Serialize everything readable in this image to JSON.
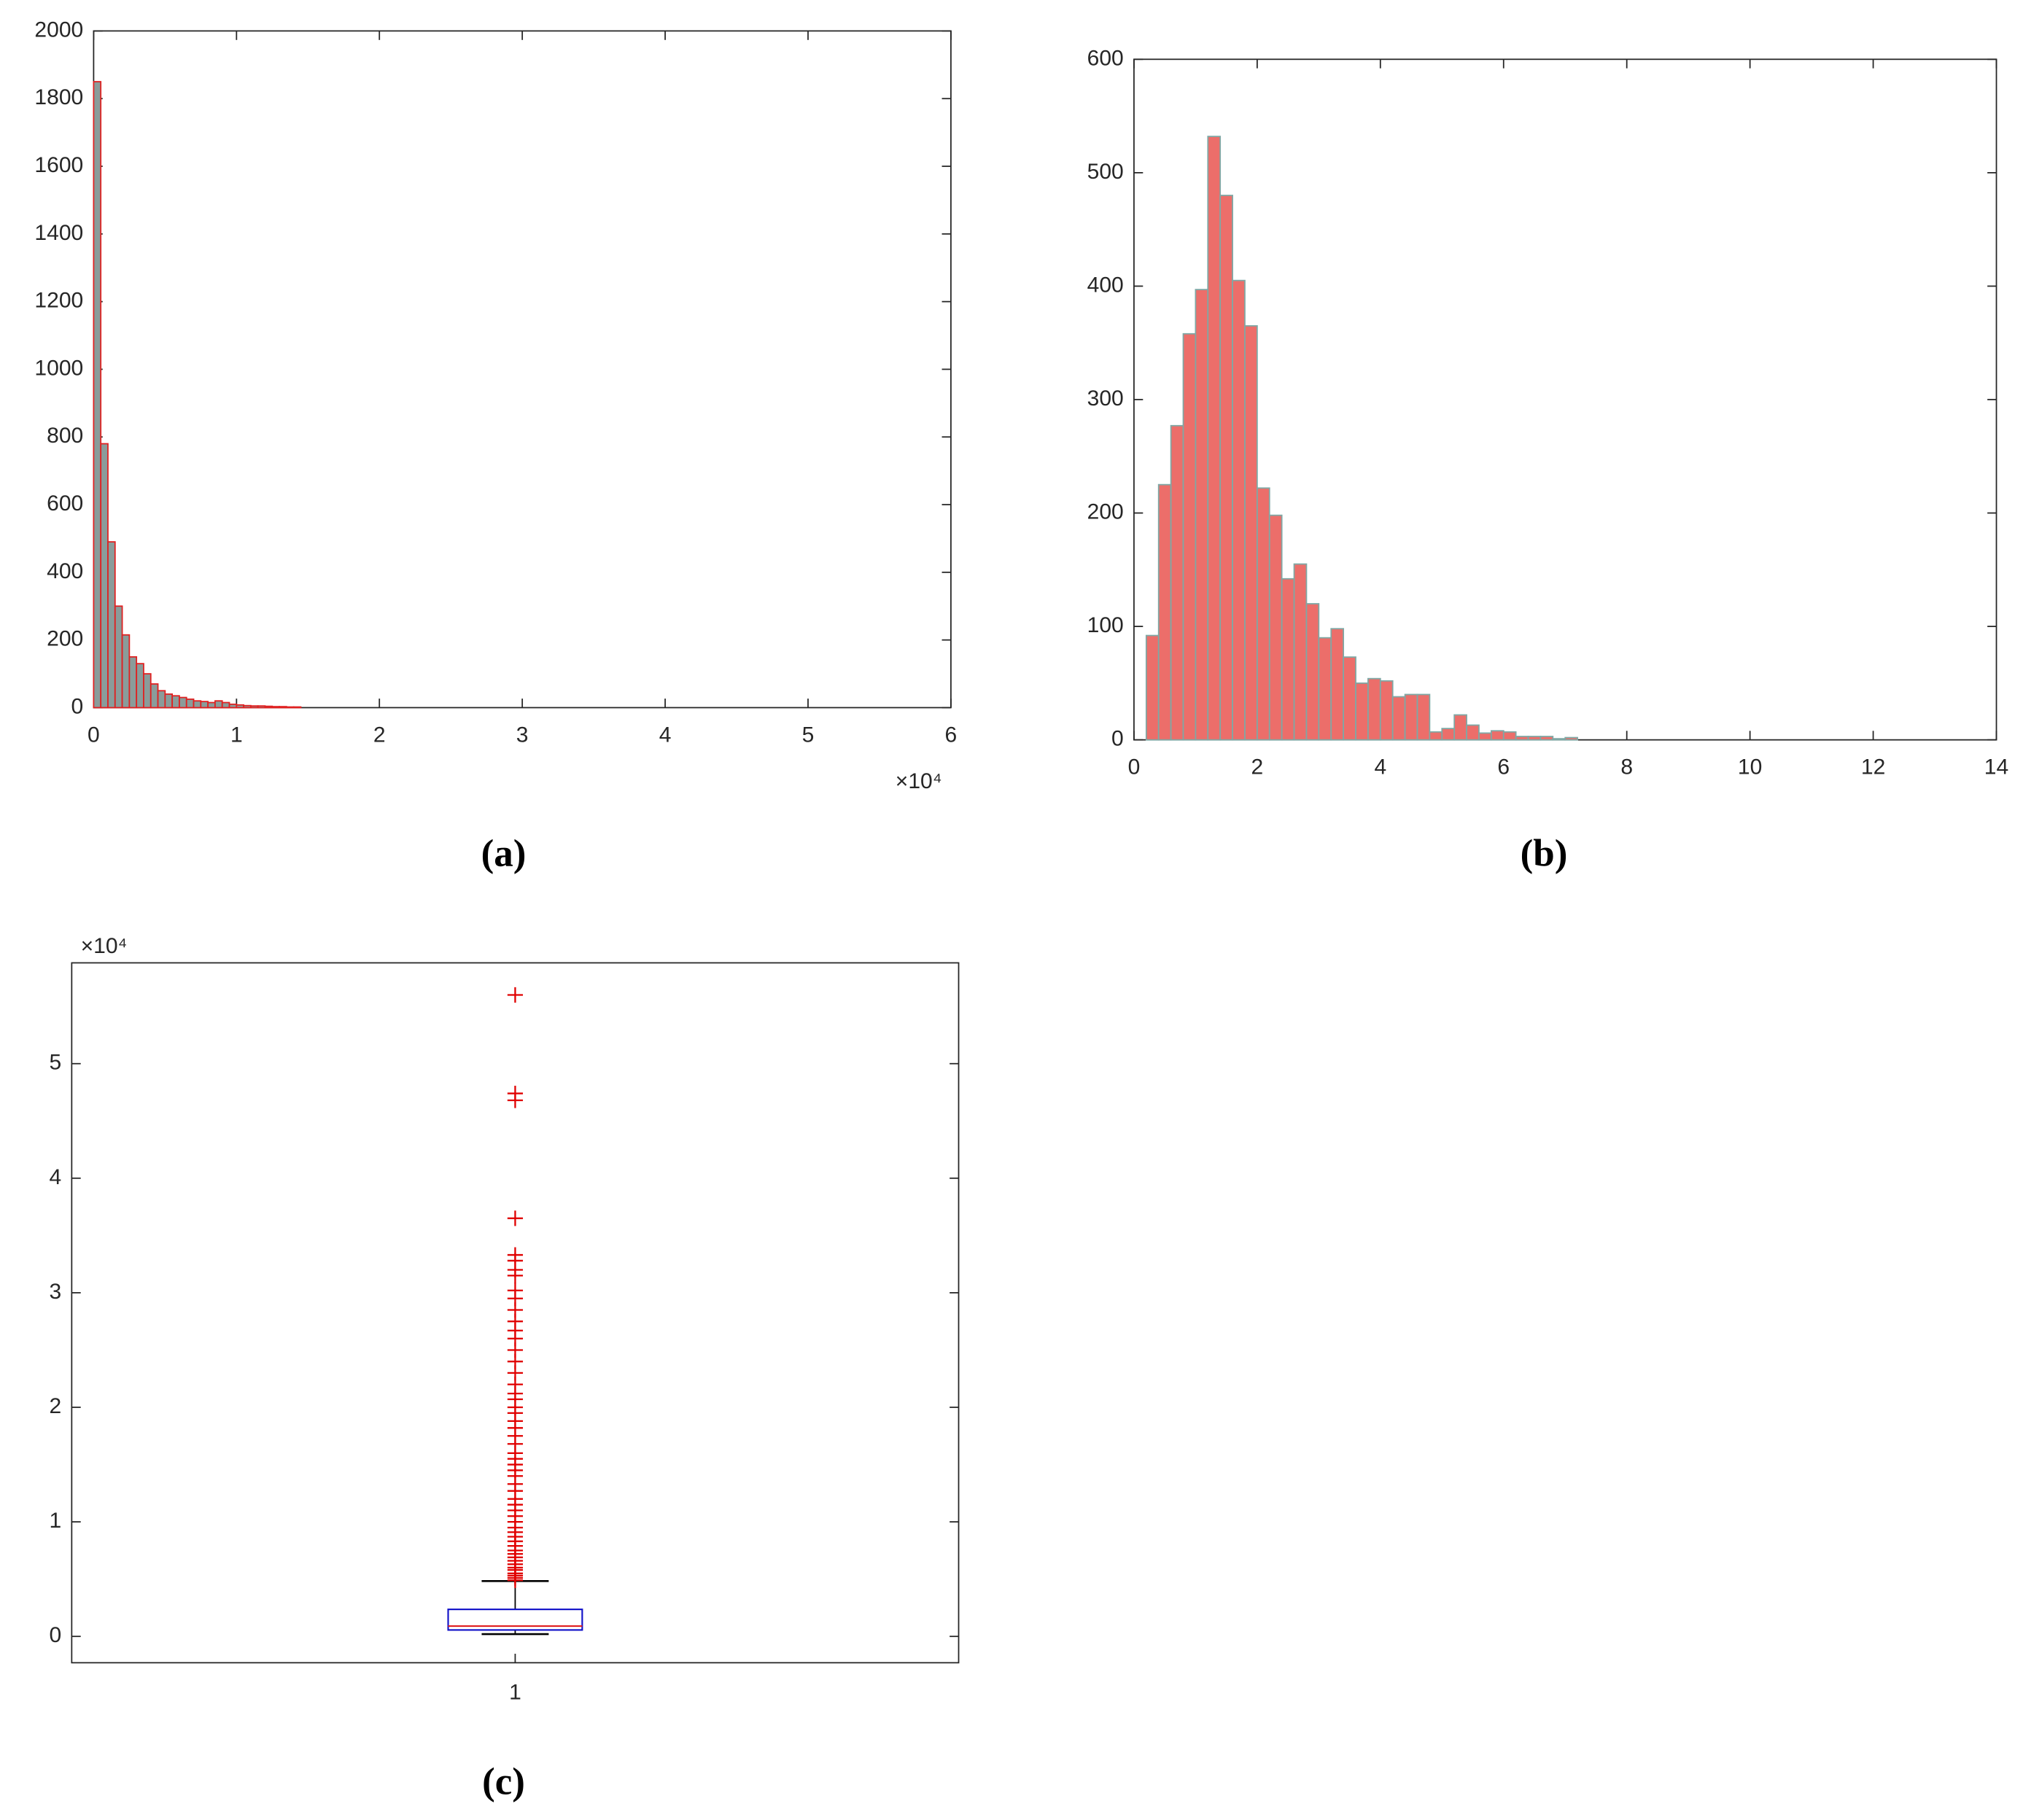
{
  "chart_data": [
    {
      "type": "histogram",
      "caption": "(a)",
      "bins": [
        0,
        500,
        1000,
        1500,
        2000,
        2500,
        3000,
        3500,
        4000,
        4500,
        5000,
        5500,
        6000,
        6500,
        7000,
        7500,
        8000,
        8500,
        9000,
        9500,
        10000,
        10500,
        11000,
        11500,
        12000,
        12500,
        13000,
        13500,
        14000,
        14500
      ],
      "values": [
        1850,
        780,
        490,
        300,
        215,
        150,
        130,
        100,
        70,
        50,
        40,
        35,
        30,
        25,
        20,
        18,
        15,
        20,
        15,
        10,
        8,
        6,
        5,
        5,
        4,
        3,
        3,
        2,
        2
      ],
      "color": "#8a9c9a",
      "edge_color": "#e02020",
      "xlim": [
        0,
        60000
      ],
      "xticks": [
        0,
        {
          "value": 10000,
          "label": "1"
        },
        {
          "value": 20000,
          "label": "2"
        },
        {
          "value": 30000,
          "label": "3"
        },
        {
          "value": 40000,
          "label": "4"
        },
        {
          "value": 50000,
          "label": "5"
        },
        {
          "value": 60000,
          "label": "6"
        }
      ],
      "x_multiplier": "×10⁴",
      "ylim": [
        0,
        2000
      ],
      "yticks": [
        0,
        200,
        400,
        600,
        800,
        1000,
        1200,
        1400,
        1600,
        1800,
        2000
      ]
    },
    {
      "type": "histogram",
      "caption": "(b)",
      "bins": [
        0.2,
        0.4,
        0.6,
        0.8,
        1.0,
        1.2,
        1.4,
        1.6,
        1.8,
        2.0,
        2.2,
        2.4,
        2.6,
        2.8,
        3.0,
        3.2,
        3.4,
        3.6,
        3.8,
        4.0,
        4.2,
        4.4,
        4.6,
        4.8,
        5.0,
        5.2,
        5.4,
        5.6,
        5.8,
        6.0,
        6.2,
        6.4,
        6.6,
        6.8,
        7.0,
        7.2
      ],
      "values": [
        92,
        225,
        277,
        358,
        397,
        532,
        480,
        405,
        365,
        222,
        198,
        142,
        155,
        120,
        90,
        98,
        73,
        50,
        54,
        52,
        38,
        40,
        40,
        7,
        10,
        22,
        13,
        6,
        8,
        7,
        3,
        3,
        3,
        1,
        2
      ],
      "color": "#ec6e6a",
      "edge_color": "#7fa8a5",
      "xlim": [
        0,
        14
      ],
      "xticks": [
        0,
        2,
        4,
        6,
        8,
        10,
        12,
        14
      ],
      "ylim": [
        0,
        600
      ],
      "yticks": [
        0,
        100,
        200,
        300,
        400,
        500,
        600
      ]
    },
    {
      "type": "box",
      "caption": "(c)",
      "categories": [
        "1"
      ],
      "whislo": 200,
      "q1": 560,
      "med": 900,
      "q3": 2360,
      "whishi": 4830,
      "fliers": [
        4900,
        5100,
        5300,
        5500,
        5800,
        6000,
        6300,
        6600,
        6900,
        7200,
        7500,
        7900,
        8300,
        8700,
        9100,
        9500,
        10000,
        10500,
        11000,
        11500,
        12000,
        12700,
        13300,
        14000,
        14500,
        15000,
        15500,
        16000,
        16800,
        17500,
        18200,
        18800,
        19500,
        20000,
        20700,
        21200,
        22000,
        23000,
        24000,
        25000,
        26000,
        26700,
        27500,
        28500,
        29500,
        30200,
        31500,
        32000,
        32800,
        33300,
        36500,
        46800,
        47400,
        56000
      ],
      "box_color": "#1010c8",
      "median_color": "#e02020",
      "whisker_color": "#000000",
      "flier_color": "#e00000",
      "ylim": [
        -2300,
        58800
      ],
      "yticks": [
        0,
        {
          "value": 10000,
          "label": "1"
        },
        {
          "value": 20000,
          "label": "2"
        },
        {
          "value": 30000,
          "label": "3"
        },
        {
          "value": 40000,
          "label": "4"
        },
        {
          "value": 50000,
          "label": "5"
        }
      ],
      "y_multiplier": "×10⁴"
    }
  ]
}
